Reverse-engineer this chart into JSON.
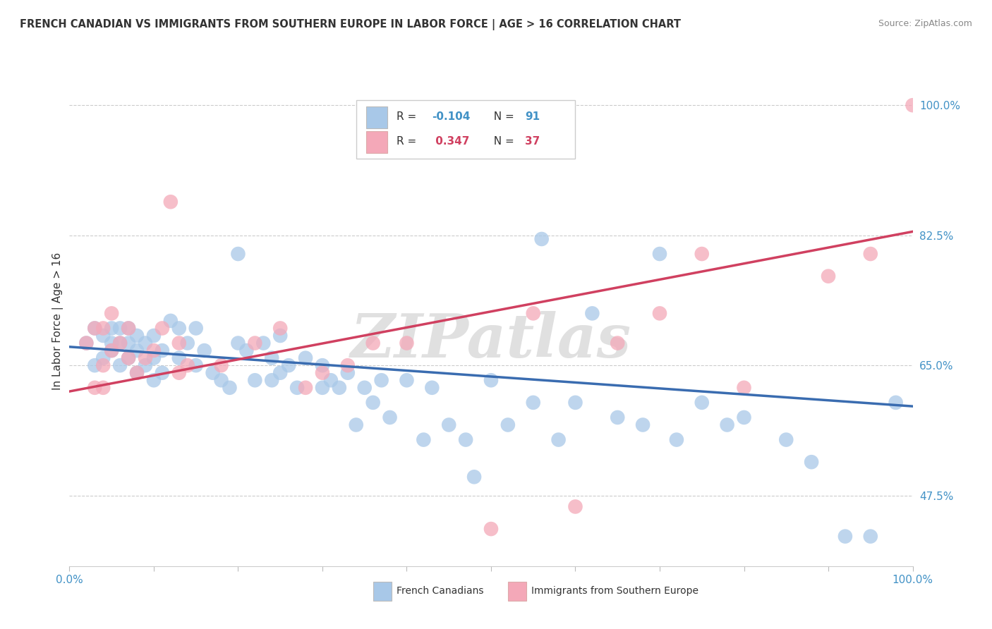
{
  "title": "FRENCH CANADIAN VS IMMIGRANTS FROM SOUTHERN EUROPE IN LABOR FORCE | AGE > 16 CORRELATION CHART",
  "source": "Source: ZipAtlas.com",
  "ylabel": "In Labor Force | Age > 16",
  "watermark": "ZIPatlas",
  "blue_color": "#a8c8e8",
  "pink_color": "#f4a8b8",
  "blue_line_color": "#3a6cb0",
  "pink_line_color": "#d04060",
  "ytick_labels": [
    "47.5%",
    "65.0%",
    "82.5%",
    "100.0%"
  ],
  "ytick_values": [
    0.475,
    0.65,
    0.825,
    1.0
  ],
  "xmin": 0.0,
  "xmax": 1.0,
  "ymin": 0.38,
  "ymax": 1.04,
  "blue_scatter_x": [
    0.02,
    0.03,
    0.03,
    0.04,
    0.04,
    0.05,
    0.05,
    0.05,
    0.06,
    0.06,
    0.06,
    0.07,
    0.07,
    0.07,
    0.08,
    0.08,
    0.08,
    0.09,
    0.09,
    0.1,
    0.1,
    0.1,
    0.11,
    0.11,
    0.12,
    0.13,
    0.13,
    0.14,
    0.15,
    0.15,
    0.16,
    0.17,
    0.18,
    0.19,
    0.2,
    0.2,
    0.21,
    0.22,
    0.23,
    0.24,
    0.24,
    0.25,
    0.25,
    0.26,
    0.27,
    0.28,
    0.3,
    0.3,
    0.31,
    0.32,
    0.33,
    0.34,
    0.35,
    0.36,
    0.37,
    0.38,
    0.4,
    0.42,
    0.43,
    0.45,
    0.47,
    0.48,
    0.5,
    0.52,
    0.55,
    0.56,
    0.58,
    0.6,
    0.62,
    0.65,
    0.68,
    0.7,
    0.72,
    0.75,
    0.78,
    0.8,
    0.85,
    0.88,
    0.92,
    0.95,
    0.98
  ],
  "blue_scatter_y": [
    0.68,
    0.65,
    0.7,
    0.66,
    0.69,
    0.67,
    0.68,
    0.7,
    0.65,
    0.68,
    0.7,
    0.66,
    0.68,
    0.7,
    0.64,
    0.67,
    0.69,
    0.65,
    0.68,
    0.63,
    0.66,
    0.69,
    0.64,
    0.67,
    0.71,
    0.66,
    0.7,
    0.68,
    0.65,
    0.7,
    0.67,
    0.64,
    0.63,
    0.62,
    0.68,
    0.8,
    0.67,
    0.63,
    0.68,
    0.63,
    0.66,
    0.64,
    0.69,
    0.65,
    0.62,
    0.66,
    0.62,
    0.65,
    0.63,
    0.62,
    0.64,
    0.57,
    0.62,
    0.6,
    0.63,
    0.58,
    0.63,
    0.55,
    0.62,
    0.57,
    0.55,
    0.5,
    0.63,
    0.57,
    0.6,
    0.82,
    0.55,
    0.6,
    0.72,
    0.58,
    0.57,
    0.8,
    0.55,
    0.6,
    0.57,
    0.58,
    0.55,
    0.52,
    0.42,
    0.42,
    0.6
  ],
  "pink_scatter_x": [
    0.02,
    0.03,
    0.04,
    0.04,
    0.05,
    0.05,
    0.06,
    0.07,
    0.07,
    0.08,
    0.09,
    0.1,
    0.11,
    0.12,
    0.13,
    0.13,
    0.14,
    0.18,
    0.22,
    0.25,
    0.28,
    0.3,
    0.33,
    0.36,
    0.4,
    0.5,
    0.55,
    0.6,
    0.65,
    0.7,
    0.75,
    0.8,
    0.9,
    0.95,
    1.0,
    0.03,
    0.04
  ],
  "pink_scatter_y": [
    0.68,
    0.7,
    0.65,
    0.7,
    0.67,
    0.72,
    0.68,
    0.66,
    0.7,
    0.64,
    0.66,
    0.67,
    0.7,
    0.87,
    0.64,
    0.68,
    0.65,
    0.65,
    0.68,
    0.7,
    0.62,
    0.64,
    0.65,
    0.68,
    0.68,
    0.43,
    0.72,
    0.46,
    0.68,
    0.72,
    0.8,
    0.62,
    0.77,
    0.8,
    1.0,
    0.62,
    0.62
  ],
  "blue_line_x": [
    0.0,
    1.0
  ],
  "blue_line_y": [
    0.675,
    0.595
  ],
  "pink_line_x": [
    0.0,
    1.0
  ],
  "pink_line_y": [
    0.615,
    0.83
  ]
}
